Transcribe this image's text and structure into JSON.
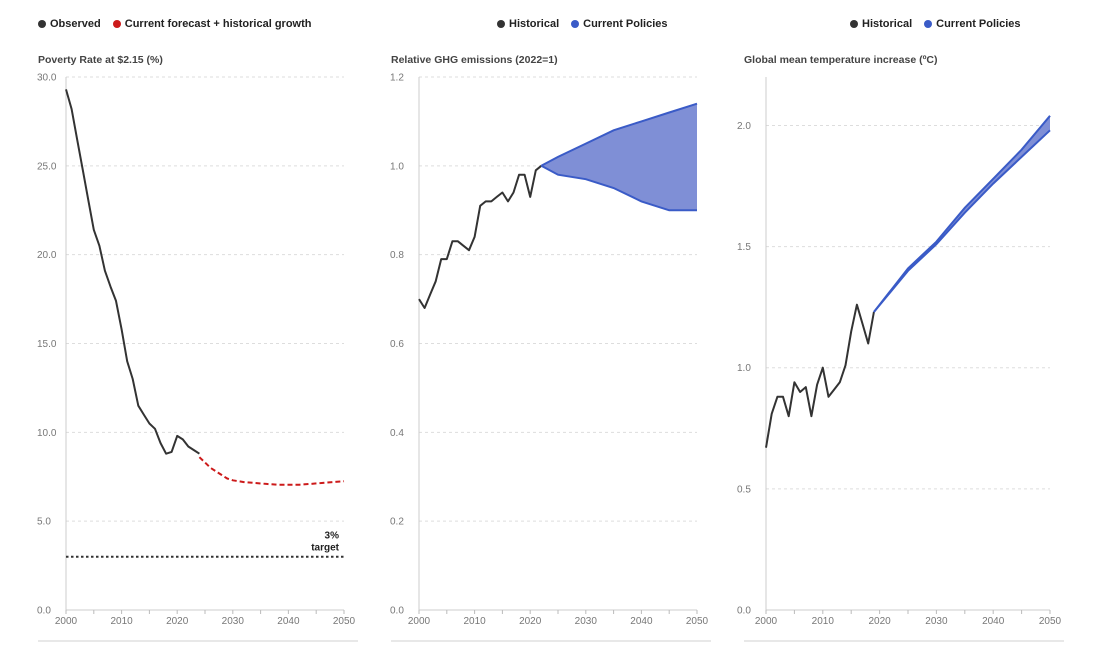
{
  "legends": [
    {
      "items": [
        {
          "label": "Observed",
          "color": "#333333"
        },
        {
          "label": "Current forecast + historical growth",
          "color": "#cc1a1a"
        }
      ]
    },
    {
      "items": [
        {
          "label": "Historical",
          "color": "#333333"
        },
        {
          "label": "Current Policies",
          "color": "#3a5bc7"
        }
      ]
    },
    {
      "items": [
        {
          "label": "Historical",
          "color": "#333333"
        },
        {
          "label": "Current Policies",
          "color": "#3a5bc7"
        }
      ]
    }
  ],
  "chart_data": [
    {
      "type": "line",
      "title": "Poverty Rate at $2.15 (%)",
      "xlabel": "",
      "ylabel": "",
      "xlim": [
        2000,
        2050
      ],
      "ylim": [
        0,
        30
      ],
      "xticks": [
        2000,
        2010,
        2020,
        2030,
        2040,
        2050
      ],
      "yticks": [
        "0.0",
        "5.0",
        "10.0",
        "15.0",
        "20.0",
        "25.0",
        "30.0"
      ],
      "grid": true,
      "series": [
        {
          "name": "Observed",
          "color": "#333333",
          "style": "solid",
          "x": [
            2000,
            2001,
            2002,
            2003,
            2004,
            2005,
            2006,
            2007,
            2008,
            2009,
            2010,
            2011,
            2012,
            2013,
            2014,
            2015,
            2016,
            2017,
            2018,
            2019,
            2020,
            2021,
            2022,
            2023,
            2024
          ],
          "y": [
            29.3,
            28.2,
            26.5,
            24.8,
            23.1,
            21.4,
            20.5,
            19.1,
            18.2,
            17.4,
            15.8,
            14.0,
            13.0,
            11.5,
            11.0,
            10.5,
            10.2,
            9.4,
            8.8,
            8.9,
            9.8,
            9.6,
            9.2,
            9.0,
            8.8
          ]
        },
        {
          "name": "Current forecast + historical growth",
          "color": "#cc1a1a",
          "style": "dashed",
          "x": [
            2024,
            2025,
            2026,
            2027,
            2028,
            2029,
            2030,
            2032,
            2034,
            2036,
            2038,
            2040,
            2042,
            2044,
            2046,
            2048,
            2050
          ],
          "y": [
            8.6,
            8.3,
            8.0,
            7.8,
            7.6,
            7.4,
            7.3,
            7.2,
            7.15,
            7.1,
            7.05,
            7.05,
            7.05,
            7.1,
            7.15,
            7.2,
            7.25
          ]
        },
        {
          "name": "3% target",
          "color": "#333333",
          "style": "dotted",
          "x": [
            2000,
            2050
          ],
          "y": [
            3,
            3
          ]
        }
      ],
      "annotations": [
        {
          "lines": [
            "3%",
            "target"
          ],
          "x": 2050,
          "y": 3
        }
      ]
    },
    {
      "type": "area",
      "title": "Relative GHG emissions (2022=1)",
      "xlabel": "",
      "ylabel": "",
      "xlim": [
        2000,
        2050
      ],
      "ylim": [
        0,
        1.2
      ],
      "xticks": [
        2000,
        2010,
        2020,
        2030,
        2040,
        2050
      ],
      "yticks": [
        "0.0",
        "0.2",
        "0.4",
        "0.6",
        "0.8",
        "1.0",
        "1.2"
      ],
      "grid": true,
      "series": [
        {
          "name": "Historical",
          "color": "#333333",
          "x": [
            2000,
            2001,
            2002,
            2003,
            2004,
            2005,
            2006,
            2007,
            2008,
            2009,
            2010,
            2011,
            2012,
            2013,
            2014,
            2015,
            2016,
            2017,
            2018,
            2019,
            2020,
            2021,
            2022
          ],
          "y": [
            0.7,
            0.68,
            0.71,
            0.74,
            0.79,
            0.79,
            0.83,
            0.83,
            0.82,
            0.81,
            0.84,
            0.91,
            0.92,
            0.92,
            0.93,
            0.94,
            0.92,
            0.94,
            0.98,
            0.98,
            0.93,
            0.99,
            1.0
          ]
        },
        {
          "name": "Current Policies",
          "color": "#3a5bc7",
          "fill": "#7f8fd6",
          "x": [
            2022,
            2025,
            2030,
            2035,
            2040,
            2045,
            2050
          ],
          "upper": [
            1.0,
            1.02,
            1.05,
            1.08,
            1.1,
            1.12,
            1.14
          ],
          "lower": [
            1.0,
            0.98,
            0.97,
            0.95,
            0.92,
            0.9,
            0.9
          ]
        }
      ]
    },
    {
      "type": "area",
      "title": "Global mean temperature increase (ºC)",
      "xlabel": "",
      "ylabel": "",
      "xlim": [
        2000,
        2050
      ],
      "ylim": [
        0,
        2.2
      ],
      "xticks": [
        2000,
        2010,
        2020,
        2030,
        2040,
        2050
      ],
      "yticks": [
        "0.0",
        "0.5",
        "1.0",
        "1.5",
        "2.0"
      ],
      "grid": true,
      "series": [
        {
          "name": "Historical",
          "color": "#333333",
          "x": [
            2000,
            2001,
            2002,
            2003,
            2004,
            2005,
            2006,
            2007,
            2008,
            2009,
            2010,
            2011,
            2012,
            2013,
            2014,
            2015,
            2016,
            2017,
            2018,
            2019
          ],
          "y": [
            0.67,
            0.81,
            0.88,
            0.88,
            0.8,
            0.94,
            0.9,
            0.92,
            0.8,
            0.93,
            1.0,
            0.88,
            0.91,
            0.94,
            1.01,
            1.15,
            1.26,
            1.18,
            1.1,
            1.23
          ]
        },
        {
          "name": "Current Policies",
          "color": "#3a5bc7",
          "fill": "#7f8fd6",
          "x": [
            2019,
            2025,
            2030,
            2035,
            2040,
            2045,
            2050
          ],
          "upper": [
            1.23,
            1.41,
            1.52,
            1.66,
            1.78,
            1.9,
            2.04
          ],
          "lower": [
            1.23,
            1.4,
            1.51,
            1.64,
            1.76,
            1.87,
            1.98
          ]
        }
      ]
    }
  ]
}
